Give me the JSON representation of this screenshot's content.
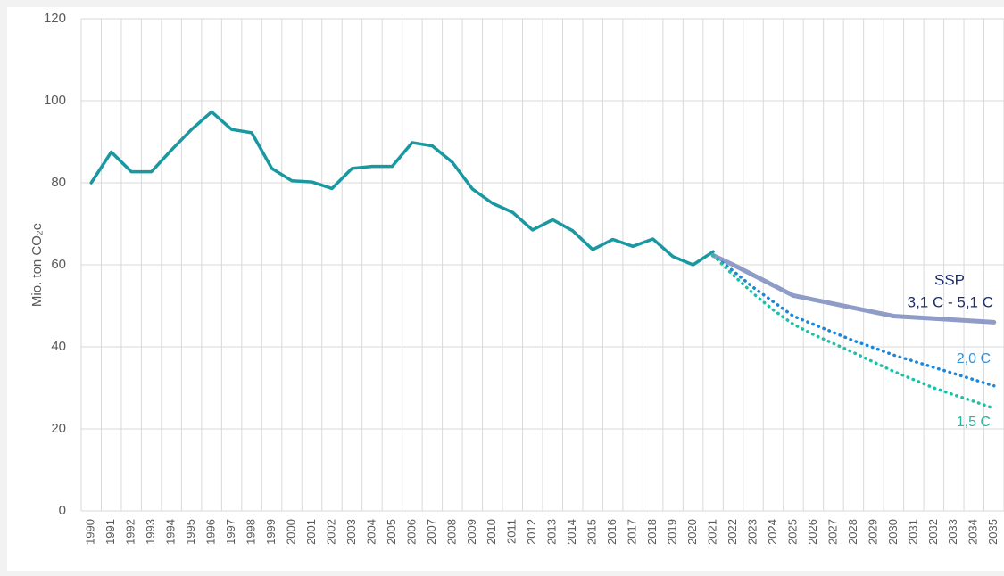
{
  "chart_data": {
    "type": "line",
    "y_label": "Mio. ton CO₂e",
    "categories": [
      "1990",
      "1991",
      "1992",
      "1993",
      "1994",
      "1995",
      "1996",
      "1997",
      "1998",
      "1999",
      "2000",
      "2001",
      "2002",
      "2003",
      "2004",
      "2005",
      "2006",
      "2007",
      "2008",
      "2009",
      "2010",
      "2011",
      "2012",
      "2013",
      "2014",
      "2015",
      "2016",
      "2017",
      "2018",
      "2019",
      "2020",
      "2021",
      "2022",
      "2023",
      "2024",
      "2025",
      "2026",
      "2027",
      "2028",
      "2029",
      "2030",
      "2031",
      "2032",
      "2033",
      "2034",
      "2035"
    ],
    "series": [
      {
        "color": "#1a98a1",
        "style": "solid",
        "values": [
          80,
          87.5,
          82.7,
          82.7,
          88,
          93,
          97.3,
          93,
          92.2,
          83.5,
          80.5,
          80.2,
          78.6,
          83.5,
          84,
          84,
          89.8,
          89,
          85,
          78.5,
          75,
          72.8,
          68.5,
          71,
          68.3,
          63.7,
          66.2,
          64.5,
          66.3,
          62,
          60,
          63.2,
          null,
          null,
          null,
          null,
          null,
          null,
          null,
          null,
          null,
          null,
          null,
          null,
          null,
          null
        ]
      },
      {
        "name": "3,1 C - 5,1 C",
        "color": "#8f9cc8",
        "label_color": "#1f2d6b",
        "style": "solid",
        "values": [
          null,
          null,
          null,
          null,
          null,
          null,
          null,
          null,
          null,
          null,
          null,
          null,
          null,
          null,
          null,
          null,
          null,
          null,
          null,
          null,
          null,
          null,
          null,
          null,
          null,
          null,
          null,
          null,
          null,
          null,
          null,
          62.3,
          60,
          57.5,
          55,
          52.5,
          51.5,
          50.5,
          49.5,
          48.5,
          47.5,
          47.2,
          46.9,
          46.6,
          46.3,
          46
        ]
      },
      {
        "name": "2,0 C",
        "color": "#1e86d8",
        "label_color": "#3a8fd0",
        "style": "dotted",
        "values": [
          null,
          null,
          null,
          null,
          null,
          null,
          null,
          null,
          null,
          null,
          null,
          null,
          null,
          null,
          null,
          null,
          null,
          null,
          null,
          null,
          null,
          null,
          null,
          null,
          null,
          null,
          null,
          null,
          null,
          null,
          null,
          62.3,
          58.5,
          54.5,
          51,
          47.5,
          45.5,
          43.5,
          41.5,
          39.8,
          38,
          36.5,
          35,
          33.5,
          32,
          30.5
        ]
      },
      {
        "name": "1,5 C",
        "color": "#1fbfa6",
        "label_color": "#2bb5a0",
        "style": "dotted",
        "values": [
          null,
          null,
          null,
          null,
          null,
          null,
          null,
          null,
          null,
          null,
          null,
          null,
          null,
          null,
          null,
          null,
          null,
          null,
          null,
          null,
          null,
          null,
          null,
          null,
          null,
          null,
          null,
          null,
          null,
          null,
          null,
          62.3,
          57.5,
          53,
          49,
          45.5,
          43,
          40.8,
          38.6,
          36.3,
          34,
          32,
          30,
          28.3,
          26.7,
          25
        ]
      }
    ],
    "annotations": [
      {
        "text": "SSP"
      }
    ],
    "ylim": [
      0,
      120
    ],
    "yticks": [
      0,
      20,
      40,
      60,
      80,
      100,
      120
    ],
    "grid": true
  }
}
